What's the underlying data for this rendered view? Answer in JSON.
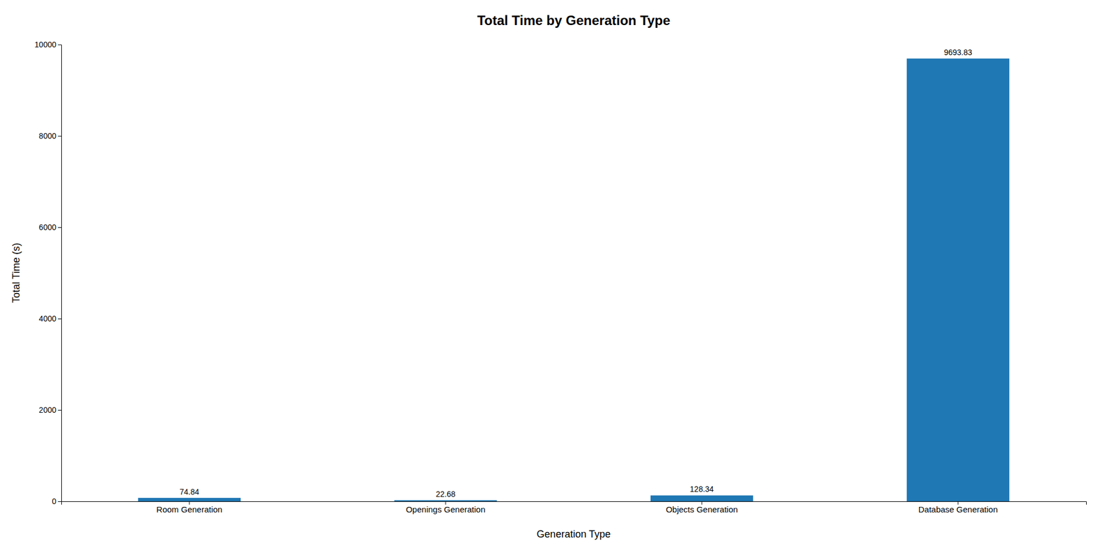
{
  "chart_data": {
    "type": "bar",
    "title": "Total Time by Generation Type",
    "xlabel": "Generation Type",
    "ylabel": "Total Time (s)",
    "categories": [
      "Room Generation",
      "Openings Generation",
      "Objects Generation",
      "Database Generation"
    ],
    "values": [
      74.84,
      22.68,
      128.34,
      9693.83
    ],
    "color": "#1f77b4",
    "ylim": [
      0,
      10000
    ],
    "yticks": [
      0,
      2000,
      4000,
      6000,
      8000,
      10000
    ],
    "grid": false,
    "data_labels": true
  }
}
